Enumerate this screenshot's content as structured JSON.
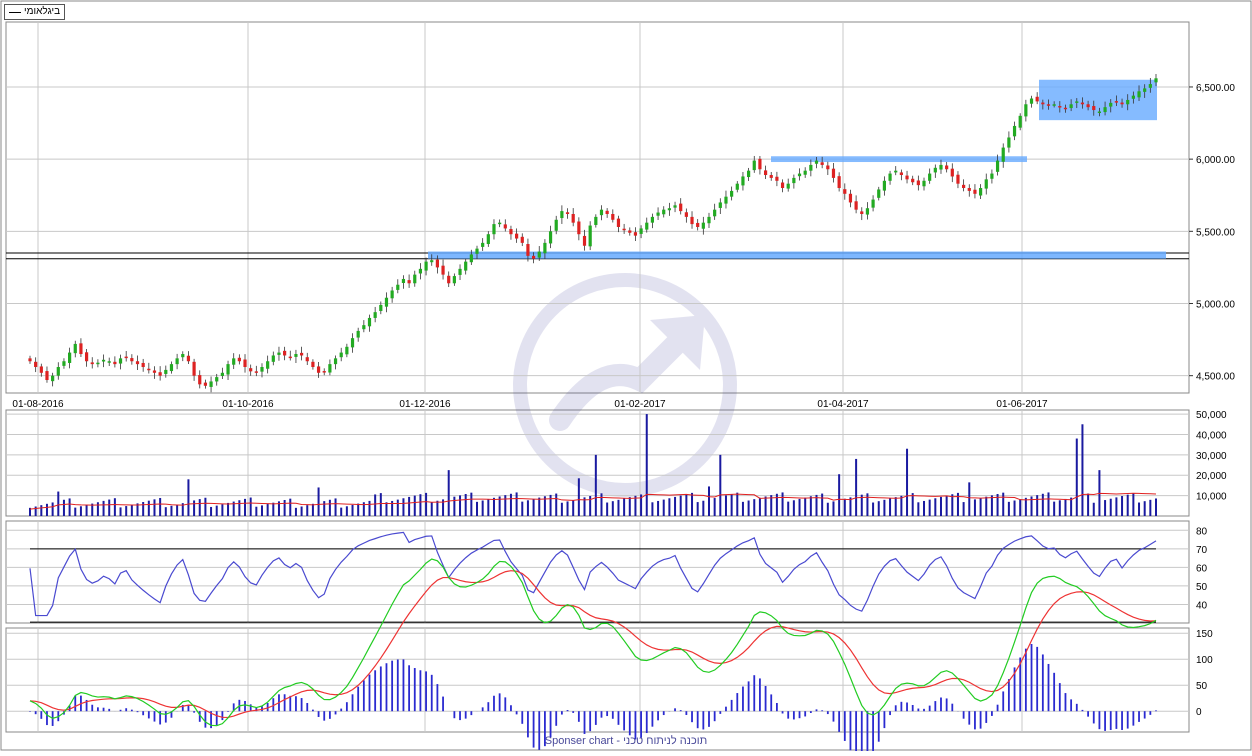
{
  "legend": {
    "label": "ביגלאומי"
  },
  "footer": {
    "text": "Sponser chart - תוכנה לניתוח טכני"
  },
  "colors": {
    "up": "#22aa22",
    "down": "#dd2222",
    "volume": "#1a1aa0",
    "volume_ma": "#e02020",
    "rsi": "#4a4ad0",
    "macd_line": "#22cc22",
    "macd_signal": "#ee3333",
    "macd_hist": "#2a2ad0",
    "zone": "#66aaff",
    "grid": "#c8c8c8"
  },
  "chart_data": [
    {
      "type": "candlestick",
      "title": "",
      "x_ticks": [
        "01-08-2016",
        "01-10-2016",
        "01-12-2016",
        "01-02-2017",
        "01-04-2017",
        "01-06-2017"
      ],
      "y_ticks": [
        "4,500.00",
        "5,000.00",
        "5,500.00",
        "6,000.00",
        "6,500.00"
      ],
      "ylim": [
        4380,
        6950
      ],
      "close": [
        4600,
        4560,
        4520,
        4470,
        4500,
        4560,
        4600,
        4660,
        4720,
        4650,
        4600,
        4580,
        4590,
        4610,
        4600,
        4580,
        4620,
        4630,
        4600,
        4580,
        4560,
        4540,
        4520,
        4500,
        4540,
        4580,
        4620,
        4650,
        4600,
        4500,
        4440,
        4430,
        4460,
        4490,
        4520,
        4580,
        4620,
        4600,
        4560,
        4530,
        4520,
        4560,
        4600,
        4640,
        4660,
        4640,
        4630,
        4650,
        4640,
        4600,
        4560,
        4520,
        4530,
        4580,
        4620,
        4660,
        4700,
        4760,
        4810,
        4850,
        4900,
        4940,
        4990,
        5040,
        5090,
        5130,
        5170,
        5140,
        5200,
        5240,
        5290,
        5300,
        5250,
        5200,
        5140,
        5190,
        5240,
        5290,
        5340,
        5380,
        5420,
        5480,
        5550,
        5560,
        5520,
        5480,
        5450,
        5420,
        5330,
        5310,
        5360,
        5420,
        5500,
        5580,
        5640,
        5620,
        5560,
        5480,
        5400,
        5540,
        5600,
        5650,
        5620,
        5580,
        5530,
        5510,
        5490,
        5470,
        5520,
        5560,
        5600,
        5630,
        5650,
        5660,
        5680,
        5640,
        5600,
        5550,
        5530,
        5560,
        5600,
        5650,
        5700,
        5740,
        5780,
        5830,
        5880,
        5920,
        5990,
        5930,
        5890,
        5870,
        5850,
        5800,
        5830,
        5870,
        5900,
        5920,
        5960,
        5990,
        5960,
        5930,
        5870,
        5800,
        5760,
        5700,
        5650,
        5620,
        5660,
        5720,
        5790,
        5850,
        5900,
        5920,
        5890,
        5860,
        5840,
        5820,
        5850,
        5900,
        5940,
        5960,
        5930,
        5880,
        5830,
        5800,
        5780,
        5760,
        5800,
        5860,
        5900,
        5990,
        6080,
        6150,
        6230,
        6300,
        6380,
        6420,
        6400,
        6380,
        6370,
        6380,
        6360,
        6350,
        6380,
        6400,
        6380,
        6360,
        6340,
        6330,
        6360,
        6390,
        6400,
        6380,
        6410,
        6440,
        6470,
        6490,
        6520,
        6560
      ],
      "volume": {
        "ylim": [
          0,
          52000
        ],
        "y_ticks": [
          "10,000",
          "20,000",
          "30,000",
          "40,000",
          "50,000"
        ]
      },
      "rsi": {
        "ylim": [
          30,
          85
        ],
        "y_ticks": [
          "40",
          "50",
          "60",
          "70",
          "80"
        ],
        "upper_line": 70,
        "lower_line": 30
      },
      "macd": {
        "ylim": [
          -40,
          160
        ],
        "y_ticks": [
          "0",
          "50",
          "100",
          "150"
        ]
      }
    }
  ]
}
